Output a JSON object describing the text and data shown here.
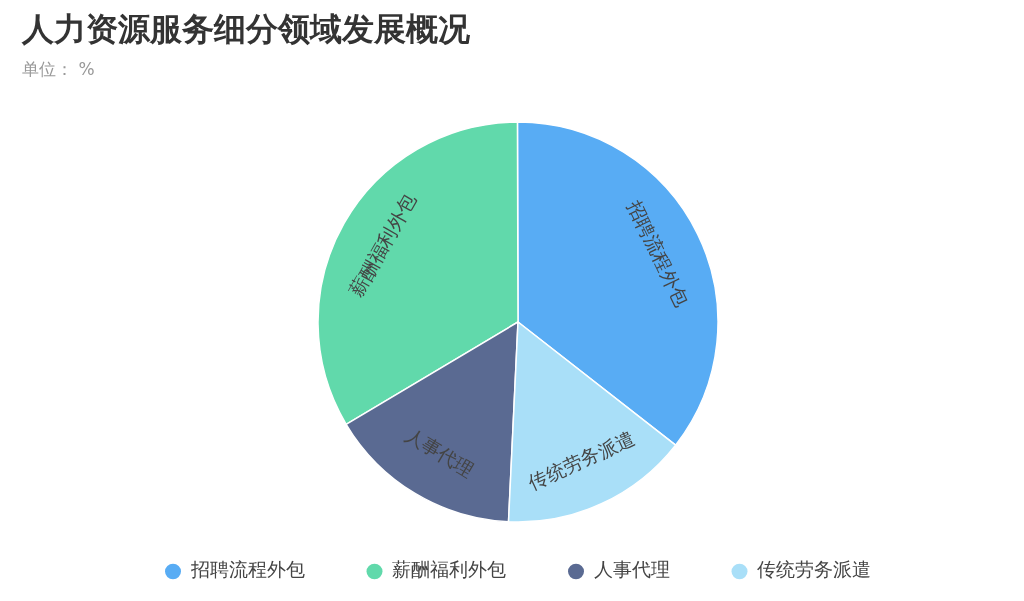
{
  "chart_data": {
    "type": "pie",
    "title": "人力资源服务细分领域发展概况",
    "subtitle": "单位： %",
    "categories": [
      "招聘流程外包",
      "薪酬福利外包",
      "人事代理",
      "传统劳务派遣"
    ],
    "values": [
      35.6,
      33.5,
      15.7,
      15.2
    ],
    "colors": [
      "#58acf4",
      "#61d9ab",
      "#5a6a92",
      "#a9dff8"
    ],
    "legend": "bottom"
  }
}
